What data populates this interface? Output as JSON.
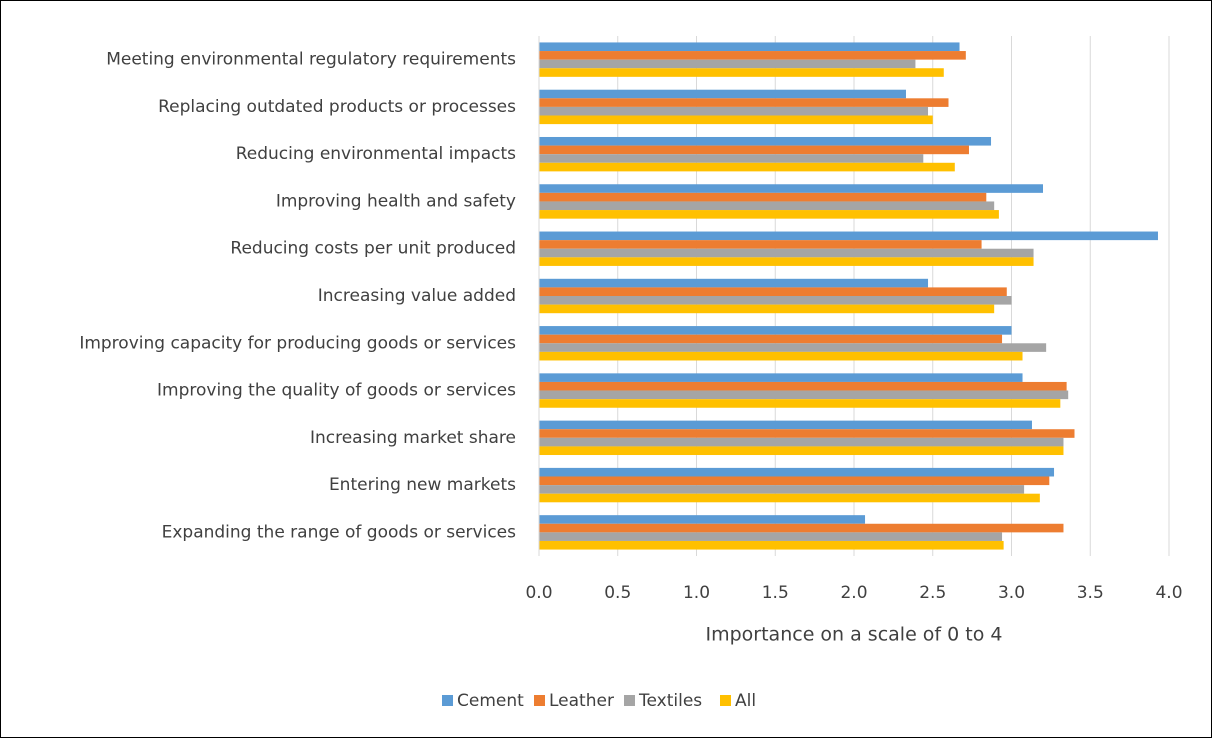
{
  "chart_data": {
    "type": "bar",
    "orientation": "horizontal",
    "x_label": "Importance on a scale of 0 to 4",
    "categories": [
      "Meeting environmental regulatory requirements",
      "Replacing outdated products or processes",
      "Reducing environmental impacts",
      "Improving health and safety",
      "Reducing costs per unit produced",
      "Increasing value added",
      "Improving capacity for producing goods or services",
      "Improving the quality of goods or services",
      "Increasing market share",
      "Entering new markets",
      "Expanding the range of goods or services"
    ],
    "series": [
      {
        "name": "Cement",
        "color": "#5b9bd5",
        "values": [
          2.67,
          2.33,
          2.87,
          3.2,
          3.93,
          2.47,
          3.0,
          3.07,
          3.13,
          3.27,
          2.07
        ]
      },
      {
        "name": "Leather",
        "color": "#ed7d31",
        "values": [
          2.71,
          2.6,
          2.73,
          2.84,
          2.81,
          2.97,
          2.94,
          3.35,
          3.4,
          3.24,
          3.33
        ]
      },
      {
        "name": "Textiles",
        "color": "#a5a5a5",
        "values": [
          2.39,
          2.47,
          2.44,
          2.89,
          3.14,
          3.0,
          3.22,
          3.36,
          3.33,
          3.08,
          2.94
        ]
      },
      {
        "name": "All",
        "color": "#ffc000",
        "values": [
          2.57,
          2.5,
          2.64,
          2.92,
          3.14,
          2.89,
          3.07,
          3.31,
          3.33,
          3.18,
          2.95
        ]
      }
    ],
    "xlim": [
      0,
      4
    ],
    "xticks": [
      {
        "value": 0,
        "label": "0.0"
      },
      {
        "value": 0.5,
        "label": "0.5"
      },
      {
        "value": 1,
        "label": "1.0"
      },
      {
        "value": 1.5,
        "label": "1.5"
      },
      {
        "value": 2,
        "label": "2.0"
      },
      {
        "value": 2.5,
        "label": "2.5"
      },
      {
        "value": 3,
        "label": "3.0"
      },
      {
        "value": 3.5,
        "label": "3.5"
      },
      {
        "value": 4,
        "label": "4.0"
      }
    ],
    "grid": true,
    "legend": "bottom"
  }
}
